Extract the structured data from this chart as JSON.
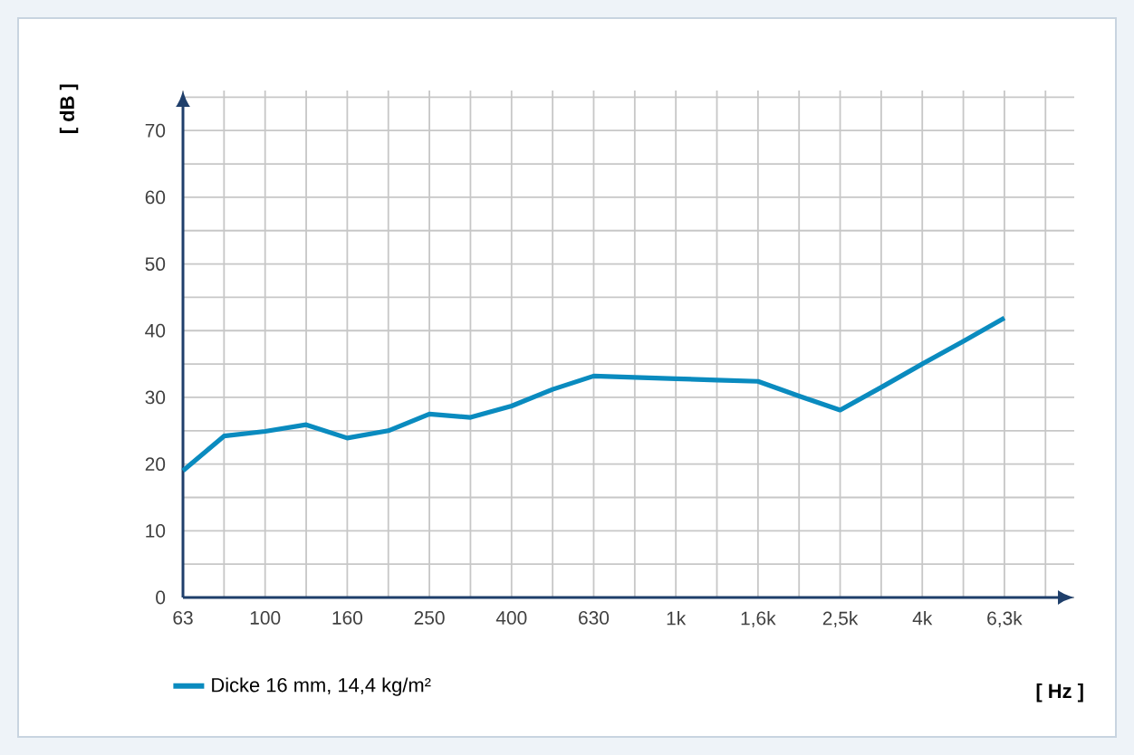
{
  "chart_data": {
    "type": "line",
    "xlabel": "[ Hz ]",
    "ylabel": "[ dB ]",
    "categories": [
      "63",
      null,
      "100",
      null,
      "160",
      null,
      "250",
      null,
      "400",
      null,
      "630",
      null,
      "1k",
      null,
      "1,6k",
      null,
      "2,5k",
      null,
      "4k",
      null,
      "6,3k",
      null
    ],
    "series": [
      {
        "name": "Dicke 16 mm, 14,4 kg/m²",
        "color": "#0a8bbf",
        "values": [
          19.0,
          24.2,
          24.9,
          25.9,
          23.9,
          25.0,
          27.5,
          27.0,
          28.7,
          31.2,
          33.2,
          33.0,
          32.8,
          32.6,
          32.4,
          30.2,
          28.1,
          31.5,
          35.0,
          38.4,
          41.9,
          null
        ]
      }
    ],
    "ylim": [
      0,
      76
    ],
    "yticks": [
      0,
      {
        "value": 5,
        "label": null
      },
      10,
      {
        "value": 15,
        "label": null
      },
      20,
      {
        "value": 25,
        "label": null
      },
      30,
      {
        "value": 35,
        "label": null
      },
      40,
      {
        "value": 45,
        "label": null
      },
      50,
      {
        "value": 55,
        "label": null
      },
      60,
      {
        "value": 65,
        "label": null
      },
      70,
      {
        "value": 75,
        "label": null
      }
    ],
    "grid": true,
    "legend": "bottom left",
    "marker": "none",
    "line_style": "solid"
  }
}
